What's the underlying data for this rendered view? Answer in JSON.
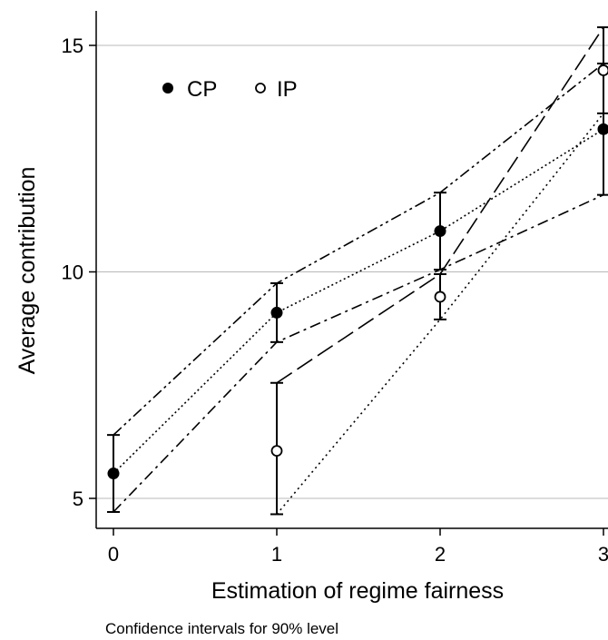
{
  "chart_data": {
    "type": "line",
    "xlabel": "Estimation of regime fairness",
    "ylabel": "Average contribution",
    "note": "Confidence intervals for 90% level",
    "x_ticks": [
      0,
      1,
      2,
      3
    ],
    "y_ticks": [
      5,
      10,
      15
    ],
    "x_tick_labels": [
      "0",
      "1",
      "2",
      "3"
    ],
    "y_tick_labels": [
      "5",
      "10",
      "15"
    ],
    "xlim": [
      -0.15,
      3.02
    ],
    "ylim": [
      4.3,
      15.8
    ],
    "grid": "horizontal",
    "legend": {
      "position": "top-left",
      "entries": [
        {
          "label": "CP",
          "marker": "filled-circle"
        },
        {
          "label": "IP",
          "marker": "hollow-circle"
        }
      ]
    },
    "series": [
      {
        "name": "CP",
        "marker": "filled-circle",
        "x": [
          0,
          1,
          2,
          3
        ],
        "y": [
          5.55,
          9.1,
          10.9,
          13.15
        ],
        "ci_lower": [
          4.7,
          8.45,
          10.05,
          11.7
        ],
        "ci_upper": [
          6.4,
          9.75,
          11.75,
          14.6
        ]
      },
      {
        "name": "IP",
        "marker": "hollow-circle",
        "x": [
          1,
          2,
          3
        ],
        "y": [
          6.05,
          9.45,
          14.45
        ],
        "ci_lower": [
          4.65,
          8.95,
          13.5
        ],
        "ci_upper": [
          7.55,
          9.95,
          15.4
        ]
      }
    ]
  }
}
